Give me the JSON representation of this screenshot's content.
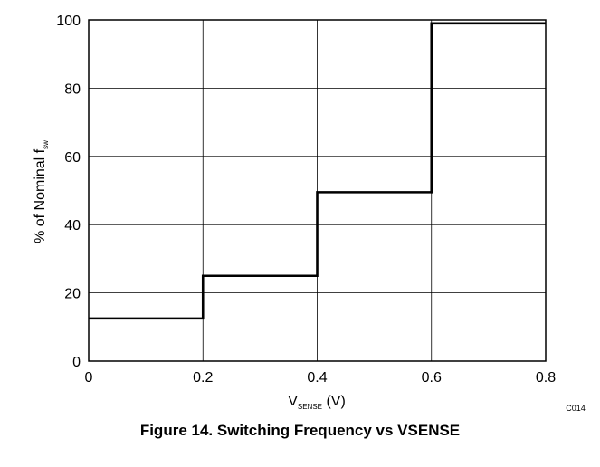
{
  "chart_data": {
    "type": "line",
    "step": true,
    "x": [
      0,
      0.2,
      0.2,
      0.4,
      0.4,
      0.6,
      0.6,
      0.8
    ],
    "series": [
      {
        "values": [
          12.5,
          12.5,
          25,
          25,
          49.5,
          49.5,
          99,
          99
        ]
      }
    ],
    "xlim": [
      0,
      0.8
    ],
    "ylim": [
      0,
      100
    ],
    "xticks": [
      0,
      0.2,
      0.4,
      0.6,
      0.8
    ],
    "yticks": [
      0,
      20,
      40,
      60,
      80,
      100
    ],
    "xtick_labels": [
      "0",
      "0.2",
      "0.4",
      "0.6",
      "0.8"
    ],
    "ytick_labels": [
      "0",
      "20",
      "40",
      "60",
      "80",
      "100"
    ],
    "xlabel": {
      "main": "V",
      "sub": "SENSE",
      "unit": " (V)"
    },
    "ylabel": {
      "main": "% of Nominal f",
      "sub": "sw"
    },
    "grid": true,
    "code": "C014"
  },
  "caption": "Figure 14. Switching Frequency vs VSENSE"
}
